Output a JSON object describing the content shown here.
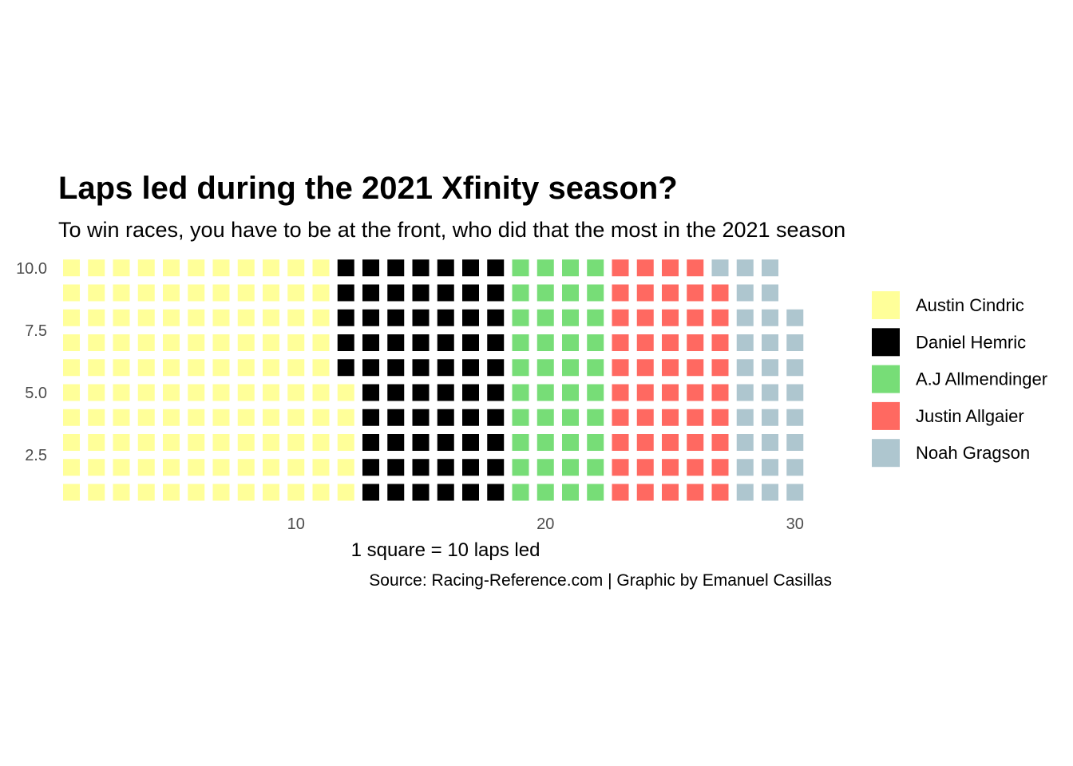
{
  "title": "Laps led during the 2021 Xfinity season?",
  "subtitle": "To win races, you have to be at the front, who did that the most in the 2021 season",
  "chart_data": {
    "type": "waffle",
    "title": "Laps led during the 2021 Xfinity season?",
    "subtitle": "To win races, you have to be at the front, who did that the most in the 2021 season",
    "xlabel": "1 square = 10 laps led",
    "caption": "Source: Racing-Reference.com | Graphic by Emanuel Casillas",
    "rows": 10,
    "square_value": 10,
    "x_ticks": [
      "10",
      "20",
      "30"
    ],
    "y_ticks": [
      "2.5",
      "5.0",
      "7.5",
      "10.0"
    ],
    "legend_position": "right",
    "grid": false,
    "series": [
      {
        "name": "Austin Cindric",
        "squares": 115,
        "color": "#FFFF99"
      },
      {
        "name": "Daniel Hemric",
        "squares": 65,
        "color": "#000000"
      },
      {
        "name": "A.J Allmendinger",
        "squares": 40,
        "color": "#77DD77"
      },
      {
        "name": "Justin Allgaier",
        "squares": 49,
        "color": "#FF6961"
      },
      {
        "name": "Noah Gragson",
        "squares": 29,
        "color": "#AEC6CF"
      }
    ]
  }
}
